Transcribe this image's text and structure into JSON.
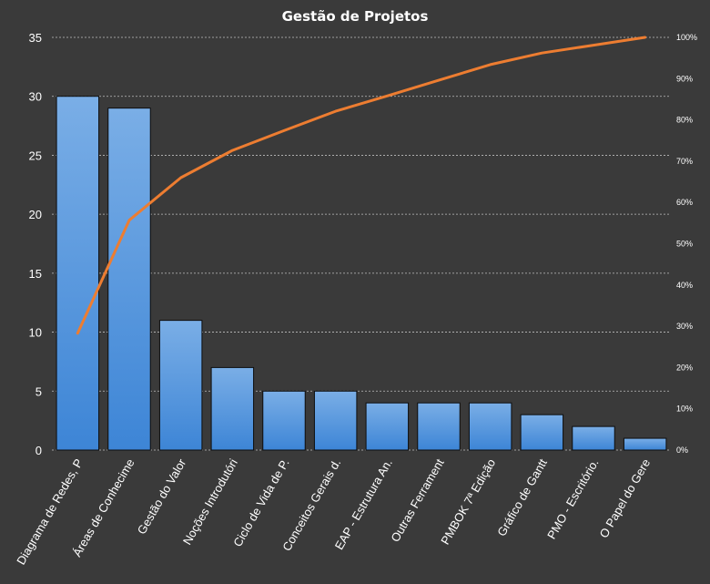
{
  "chart_data": {
    "type": "bar",
    "title": "Gestão de Projetos",
    "categories": [
      "Diagrama de Redes, P",
      "Áreas de Conhecime",
      "Gestão do Valor",
      "Noções Introdutóri",
      "Ciclo de Vida de P.",
      "Conceitos Gerais d.",
      "EAP - Estrutura An.",
      "Outras Ferrament",
      "PMBOK 7ª Edição",
      "Gráfico de Gantt",
      "PMO - Escritório.",
      "O Papel do Gere"
    ],
    "series": [
      {
        "type": "bar",
        "axis": "left",
        "values": [
          30,
          29,
          11,
          7,
          5,
          5,
          4,
          4,
          4,
          3,
          2,
          1
        ]
      },
      {
        "type": "line",
        "axis": "right",
        "values": [
          28.3,
          55.7,
          66.0,
          72.6,
          77.4,
          82.1,
          85.8,
          89.6,
          93.4,
          96.2,
          98.1,
          100
        ]
      }
    ],
    "ylim": [
      0,
      35
    ],
    "yticks": [
      "0",
      "5",
      "10",
      "15",
      "20",
      "25",
      "30",
      "35"
    ],
    "y2lim": [
      0,
      100
    ],
    "y2ticks": [
      "0%",
      "10%",
      "20%",
      "30%",
      "40%",
      "50%",
      "60%",
      "70%",
      "80%",
      "90%",
      "100%"
    ],
    "grid": true,
    "legend": "none",
    "colors": {
      "background": "#3a3a3a",
      "bar_top": "#7aaee6",
      "bar_bottom": "#3d85d6",
      "bar_stroke": "#0d0d0d",
      "line": "#ed7d31",
      "gridline": "#bfbfbf",
      "text": "#ffffff"
    }
  }
}
